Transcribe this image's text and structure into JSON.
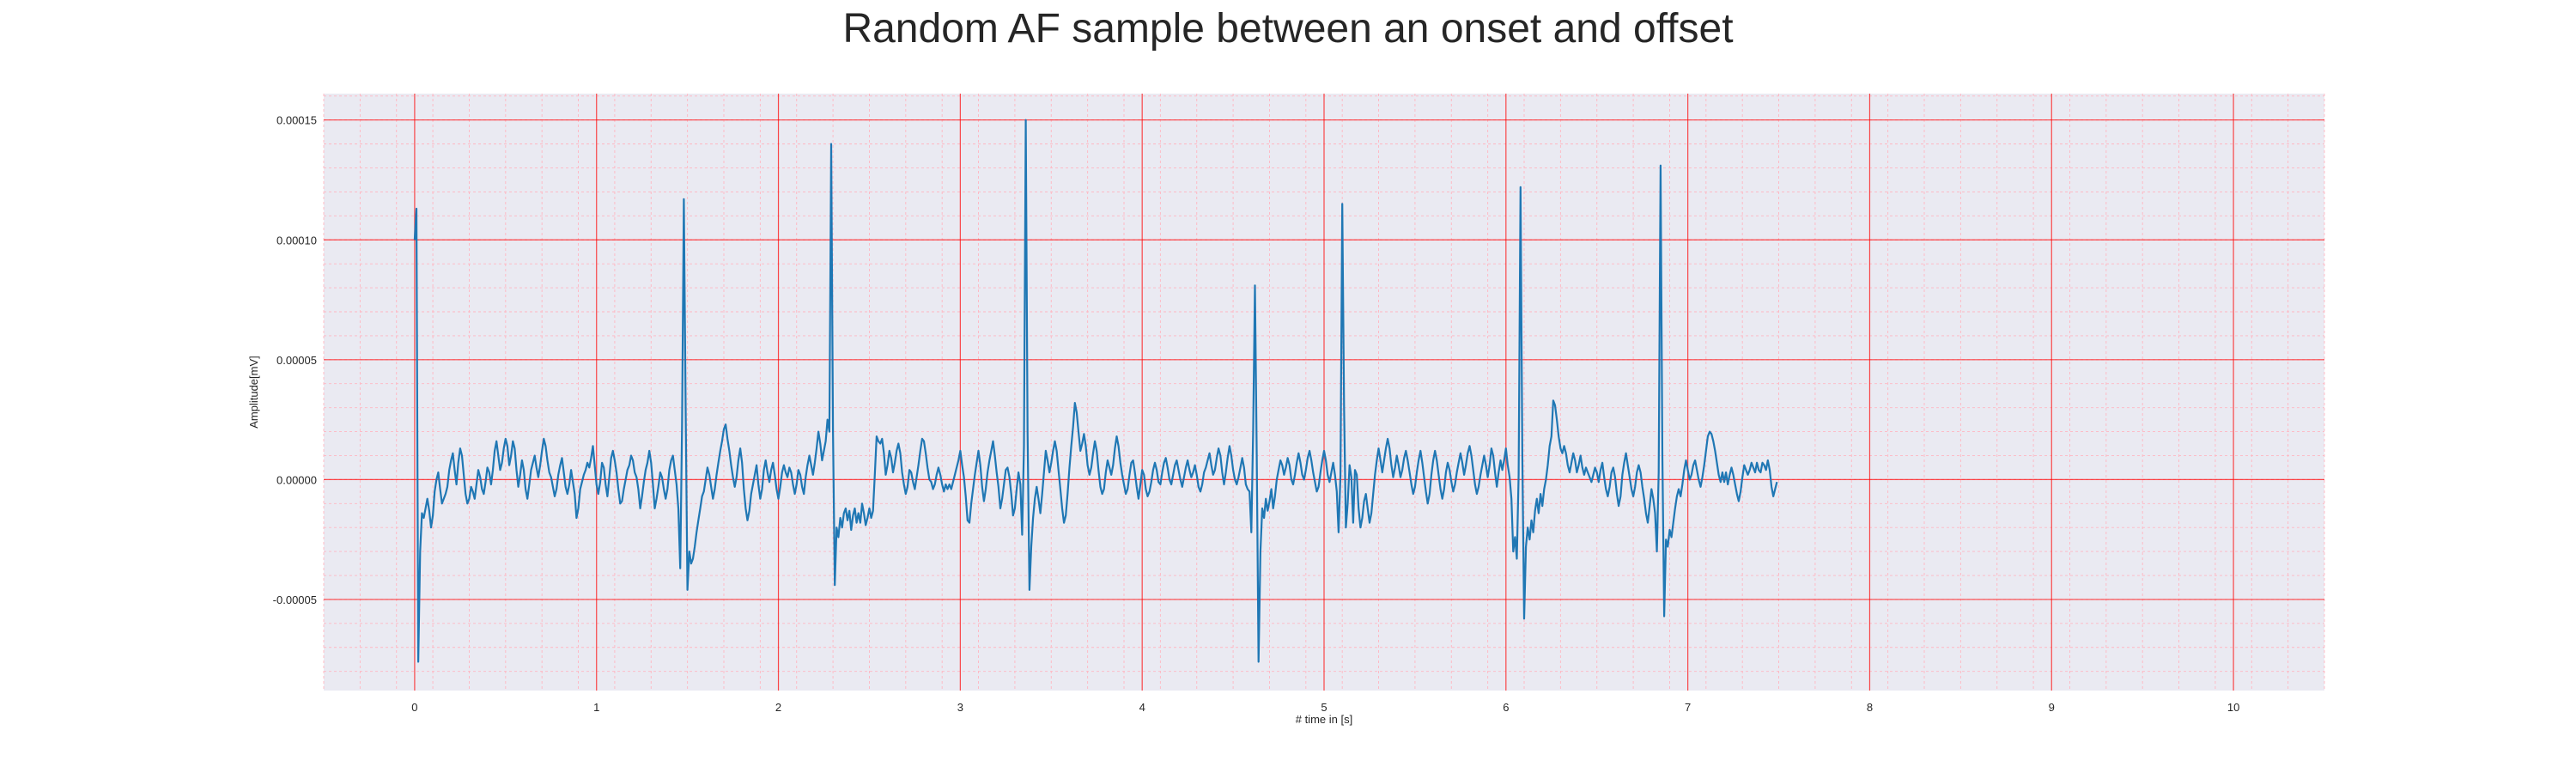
{
  "chart_data": {
    "type": "line",
    "title": "Random AF sample between an onset and offset",
    "xlabel": "# time in [s]",
    "ylabel": "Amplitude[mV]",
    "xlim": [
      -0.5,
      10.5
    ],
    "ylim": [
      -8.8e-05,
      0.000161
    ],
    "x_ticks": [
      "0",
      "1",
      "2",
      "3",
      "4",
      "5",
      "6",
      "7",
      "8",
      "9",
      "10"
    ],
    "y_ticks": [
      "0.00015",
      "0.00010",
      "0.00005",
      "0.00000",
      "-0.00005"
    ],
    "grid": {
      "major": true,
      "minor": true,
      "major_color": "#ff0000",
      "minor_color": "#ffb6c1"
    },
    "background_color": "#eaeaf2",
    "line_color": "#1f77b4",
    "series": [
      {
        "sample_rate_hz": 100,
        "x_start": 0,
        "values": [
          0.0001,
          0.000113,
          -7.6e-05,
          -3e-05,
          -1.4e-05,
          -1.6e-05,
          -1.2e-05,
          -8e-06,
          -1.3e-05,
          -2e-05,
          -1.5e-05,
          -5e-06,
          0,
          3e-06,
          -4e-06,
          -1e-05,
          -8e-06,
          -6e-06,
          -3e-06,
          4e-06,
          8e-06,
          1.1e-05,
          4e-06,
          -2e-06,
          7e-06,
          1.3e-05,
          1e-05,
          2e-06,
          -6e-06,
          -1e-05,
          -8e-06,
          -3e-06,
          -5e-06,
          -8e-06,
          -2e-06,
          4e-06,
          1e-06,
          -4e-06,
          -6e-06,
          -1e-06,
          5e-06,
          3e-06,
          -2e-06,
          4e-06,
          1.2e-05,
          1.6e-05,
          1e-05,
          4e-06,
          7e-06,
          1.3e-05,
          1.7e-05,
          1.4e-05,
          6e-06,
          1e-05,
          1.6e-05,
          1.3e-05,
          4e-06,
          -3e-06,
          2e-06,
          8e-06,
          4e-06,
          -4e-06,
          -8e-06,
          -2e-06,
          4e-06,
          7e-06,
          1e-05,
          5e-06,
          1e-06,
          6e-06,
          1.2e-05,
          1.7e-05,
          1.4e-05,
          8e-06,
          3e-06,
          1e-06,
          -3e-06,
          -7e-06,
          -4e-06,
          2e-06,
          6e-06,
          9e-06,
          3e-06,
          -3e-06,
          -6e-06,
          -2e-06,
          4e-06,
          -1e-06,
          -6e-06,
          -1.6e-05,
          -1.2e-05,
          -4e-06,
          -1e-06,
          2e-06,
          4e-06,
          7e-06,
          5e-06,
          9e-06,
          1.4e-05,
          6e-06,
          -2e-06,
          -6e-06,
          -1e-06,
          7e-06,
          5e-06,
          -2e-06,
          -7e-06,
          1e-06,
          9e-06,
          1.2e-05,
          8e-06,
          3e-06,
          -4e-06,
          -1e-05,
          -9e-06,
          -4e-06,
          0,
          4e-06,
          6e-06,
          1e-05,
          8e-06,
          3e-06,
          1e-06,
          -4e-06,
          -1.2e-05,
          -7e-06,
          -1e-06,
          4e-06,
          7e-06,
          1.2e-05,
          7e-06,
          -2e-06,
          -1.2e-05,
          -8e-06,
          -3e-06,
          3e-06,
          1e-06,
          -4e-06,
          -8e-06,
          -4e-06,
          4e-06,
          8e-06,
          1e-05,
          4e-06,
          -2e-06,
          -1.2e-05,
          -3.7e-05,
          2.2e-05,
          0.000117,
          3e-05,
          -4.6e-05,
          -3e-05,
          -3.5e-05,
          -3.3e-05,
          -2.8e-05,
          -2.2e-05,
          -1.7e-05,
          -1.2e-05,
          -7e-06,
          -5e-06,
          0,
          5e-06,
          2e-06,
          -3e-06,
          -8e-06,
          -4e-06,
          2e-06,
          7e-06,
          1.2e-05,
          1.6e-05,
          2.1e-05,
          2.3e-05,
          1.7e-05,
          1.2e-05,
          6e-06,
          1e-06,
          -3e-06,
          1e-06,
          8e-06,
          1.3e-05,
          7e-06,
          -4e-06,
          -1.2e-05,
          -1.7e-05,
          -1.3e-05,
          -6e-06,
          -2e-06,
          2e-06,
          6e-06,
          -2e-06,
          -8e-06,
          -4e-06,
          4e-06,
          8e-06,
          3e-06,
          -1e-06,
          4e-06,
          7e-06,
          2e-06,
          -4e-06,
          -8e-06,
          -3e-06,
          3e-06,
          6e-06,
          3e-06,
          1e-06,
          5e-06,
          3e-06,
          -2e-06,
          -6e-06,
          -2e-06,
          4e-06,
          2e-06,
          -3e-06,
          -6e-06,
          1e-06,
          6e-06,
          1e-05,
          6e-06,
          2e-06,
          7e-06,
          1.3e-05,
          2e-05,
          1.5e-05,
          8e-06,
          1.2e-05,
          1.6e-05,
          2.5e-05,
          2e-05,
          0.00014,
          2e-05,
          -4.4e-05,
          -2e-05,
          -2.4e-05,
          -1.6e-05,
          -2e-05,
          -1.4e-05,
          -1.2e-05,
          -1.7e-05,
          -1.3e-05,
          -2.1e-05,
          -1.5e-05,
          -1.2e-05,
          -1.8e-05,
          -1.4e-05,
          -1.8e-05,
          -1e-05,
          -1.4e-05,
          -1.9e-05,
          -1.6e-05,
          -1.2e-05,
          -1.6e-05,
          -1.3e-05,
          2e-06,
          1.8e-05,
          1.6e-05,
          1.5e-05,
          1.7e-05,
          1.1e-05,
          2e-06,
          6e-06,
          1.2e-05,
          9e-06,
          3e-06,
          7e-06,
          1.2e-05,
          1.5e-05,
          1.1e-05,
          3e-06,
          -2e-06,
          -6e-06,
          -3e-06,
          4e-06,
          3e-06,
          -1e-06,
          -4e-06,
          1e-06,
          6e-06,
          1.2e-05,
          1.7e-05,
          1.6e-05,
          1.1e-05,
          5e-06,
          0,
          -1e-06,
          -4e-06,
          -2e-06,
          2e-06,
          5e-06,
          2e-06,
          -2e-06,
          -5e-06,
          -2e-06,
          -4e-06,
          -2e-06,
          -4e-06,
          -1e-06,
          2e-06,
          5e-06,
          8e-06,
          1.2e-05,
          6e-06,
          1e-06,
          -7e-06,
          -1.7e-05,
          -1.8e-05,
          -1e-05,
          -4e-06,
          2e-06,
          7e-06,
          1.2e-05,
          6e-06,
          -3e-06,
          -9e-06,
          -4e-06,
          3e-06,
          8e-06,
          1.2e-05,
          1.6e-05,
          1e-05,
          3e-06,
          -3e-06,
          -1.2e-05,
          -8e-06,
          -2e-06,
          4e-06,
          5e-06,
          1e-06,
          -6e-06,
          -1.5e-05,
          -1.2e-05,
          -4e-06,
          3e-06,
          -2e-06,
          -2.3e-05,
          1.4e-05,
          0.00015,
          2e-05,
          -4.6e-05,
          -2.8e-05,
          -1.6e-05,
          -8e-06,
          -3e-06,
          -8e-06,
          -1.4e-05,
          -6e-06,
          3e-06,
          1.2e-05,
          8e-06,
          3e-06,
          7e-06,
          1.2e-05,
          1.6e-05,
          1.2e-05,
          4e-06,
          -4e-06,
          -1.2e-05,
          -1.8e-05,
          -1.5e-05,
          -6e-06,
          5e-06,
          1.4e-05,
          2.2e-05,
          3.2e-05,
          2.8e-05,
          2e-05,
          1.2e-05,
          1.5e-05,
          1.9e-05,
          1.4e-05,
          6e-06,
          2e-06,
          5e-06,
          1.1e-05,
          1.6e-05,
          1.2e-05,
          4e-06,
          -3e-06,
          -6e-06,
          -4e-06,
          3e-06,
          8e-06,
          5e-06,
          2e-06,
          6e-06,
          1.3e-05,
          1.8e-05,
          1.4e-05,
          7e-06,
          2e-06,
          -2e-06,
          -6e-06,
          -4e-06,
          2e-06,
          7e-06,
          8e-06,
          3e-06,
          -3e-06,
          -8e-06,
          -2e-06,
          4e-06,
          2e-06,
          -4e-06,
          -7e-06,
          -5e-06,
          -1e-06,
          4e-06,
          7e-06,
          4e-06,
          -1e-06,
          -2e-06,
          3e-06,
          7e-06,
          9e-06,
          5e-06,
          0,
          -2e-06,
          2e-06,
          6e-06,
          8e-06,
          4e-06,
          0,
          -3e-06,
          1e-06,
          5e-06,
          8e-06,
          4e-06,
          1e-06,
          3e-06,
          6e-06,
          2e-06,
          -3e-06,
          -5e-06,
          -2e-06,
          3e-06,
          5e-06,
          8e-06,
          1.1e-05,
          6e-06,
          2e-06,
          4e-06,
          9e-06,
          1.3e-05,
          1e-05,
          3e-06,
          -2e-06,
          3e-06,
          9e-06,
          1.4e-05,
          1e-05,
          4e-06,
          0,
          -2e-06,
          1e-06,
          5e-06,
          9e-06,
          5e-06,
          -2e-06,
          -4e-06,
          -5e-06,
          -2.2e-05,
          2e-05,
          8.1e-05,
          1e-05,
          -7.6e-05,
          -3e-05,
          -1.2e-05,
          -1.6e-05,
          -8e-06,
          -1.3e-05,
          -9e-06,
          -4e-06,
          -1.2e-05,
          -7e-06,
          0,
          4e-06,
          8e-06,
          6e-06,
          2e-06,
          5e-06,
          9e-06,
          6e-06,
          0,
          -2e-06,
          2e-06,
          7e-06,
          1.1e-05,
          7e-06,
          2e-06,
          0,
          4e-06,
          9e-06,
          1.2e-05,
          8e-06,
          3e-06,
          -1e-06,
          -5e-06,
          -3e-06,
          3e-06,
          8e-06,
          1.2e-05,
          8e-06,
          2e-06,
          -1e-06,
          3e-06,
          7e-06,
          2e-06,
          -5e-06,
          -2.2e-05,
          2e-06,
          0.000115,
          3e-05,
          -2e-05,
          -1e-05,
          6e-06,
          1e-06,
          -1.8e-05,
          4e-06,
          2e-06,
          -1.2e-05,
          -2e-05,
          -1.6e-05,
          -9e-06,
          -6e-06,
          -1.2e-05,
          -1.8e-05,
          -1.4e-05,
          -6e-06,
          2e-06,
          8e-06,
          1.3e-05,
          8e-06,
          3e-06,
          8e-06,
          1.3e-05,
          1.7e-05,
          1.3e-05,
          6e-06,
          1e-06,
          5e-06,
          1e-05,
          6e-06,
          1e-06,
          4e-06,
          9e-06,
          1.2e-05,
          8e-06,
          3e-06,
          -2e-06,
          -6e-06,
          -3e-06,
          3e-06,
          8e-06,
          1.2e-05,
          7e-06,
          1e-06,
          -5e-06,
          -1e-05,
          -6e-06,
          2e-06,
          8e-06,
          1.2e-05,
          8e-06,
          2e-06,
          -4e-06,
          -8e-06,
          -4e-06,
          3e-06,
          7e-06,
          4e-06,
          -1e-06,
          -5e-06,
          -2e-06,
          3e-06,
          7e-06,
          1.1e-05,
          7e-06,
          2e-06,
          6e-06,
          1.1e-05,
          1.4e-05,
          1e-05,
          4e-06,
          -2e-06,
          -6e-06,
          -3e-06,
          2e-06,
          6e-06,
          1e-05,
          6e-06,
          1e-06,
          6e-06,
          1.3e-05,
          1e-05,
          3e-06,
          -3e-06,
          3e-06,
          8e-06,
          4e-06,
          8e-06,
          1.3e-05,
          6e-06,
          1e-06,
          -8e-06,
          -3e-05,
          -2.4e-05,
          -3.3e-05,
          2e-06,
          0.000122,
          1e-05,
          -5.8e-05,
          -2.8e-05,
          -2e-05,
          -2.5e-05,
          -1.7e-05,
          -2.2e-05,
          -1.3e-05,
          -8e-06,
          -1.4e-05,
          -6e-06,
          -1.1e-05,
          -4e-06,
          0,
          6e-06,
          1.4e-05,
          1.8e-05,
          3.3e-05,
          3.1e-05,
          2.5e-05,
          1.8e-05,
          1.3e-05,
          1.1e-05,
          1.4e-05,
          1.1e-05,
          6e-06,
          3e-06,
          7e-06,
          1.1e-05,
          8e-06,
          3e-06,
          6e-06,
          1e-05,
          5e-06,
          2e-06,
          5e-06,
          3e-06,
          1e-06,
          -1e-06,
          2e-06,
          5e-06,
          3e-06,
          -1e-06,
          4e-06,
          7e-06,
          1e-06,
          -4e-06,
          -7e-06,
          -3e-06,
          3e-06,
          5e-06,
          1e-06,
          -6e-06,
          -1.1e-05,
          -7e-06,
          2e-06,
          7e-06,
          1.1e-05,
          6e-06,
          1e-06,
          -4e-06,
          -7e-06,
          -3e-06,
          3e-06,
          6e-06,
          3e-06,
          -3e-06,
          -8e-06,
          -1.4e-05,
          -1.8e-05,
          -1.1e-05,
          -4e-06,
          -8e-06,
          -1.4e-05,
          -3e-05,
          3e-06,
          0.000131,
          1e-05,
          -5.7e-05,
          -2.5e-05,
          -2.8e-05,
          -2.1e-05,
          -2.4e-05,
          -1.8e-05,
          -1.2e-05,
          -7e-06,
          -4e-06,
          -7e-06,
          -2e-06,
          4e-06,
          8e-06,
          4e-06,
          0,
          2e-06,
          6e-06,
          8e-06,
          4e-06,
          0,
          -3e-06,
          1e-06,
          6e-06,
          1.2e-05,
          1.8e-05,
          2e-05,
          1.9e-05,
          1.6e-05,
          1.2e-05,
          7e-06,
          2e-06,
          -1e-06,
          3e-06,
          -1e-06,
          3e-06,
          -2e-06,
          2e-06,
          5e-06,
          2e-06,
          -2e-06,
          -6e-06,
          -9e-06,
          -5e-06,
          1e-06,
          6e-06,
          4e-06,
          2e-06,
          4e-06,
          7e-06,
          5e-06,
          3e-06,
          7e-06,
          4e-06,
          3e-06,
          7e-06,
          6e-06,
          4e-06,
          8e-06,
          4e-06,
          -3e-06,
          -7e-06,
          -4e-06,
          -1e-06
        ]
      }
    ]
  }
}
